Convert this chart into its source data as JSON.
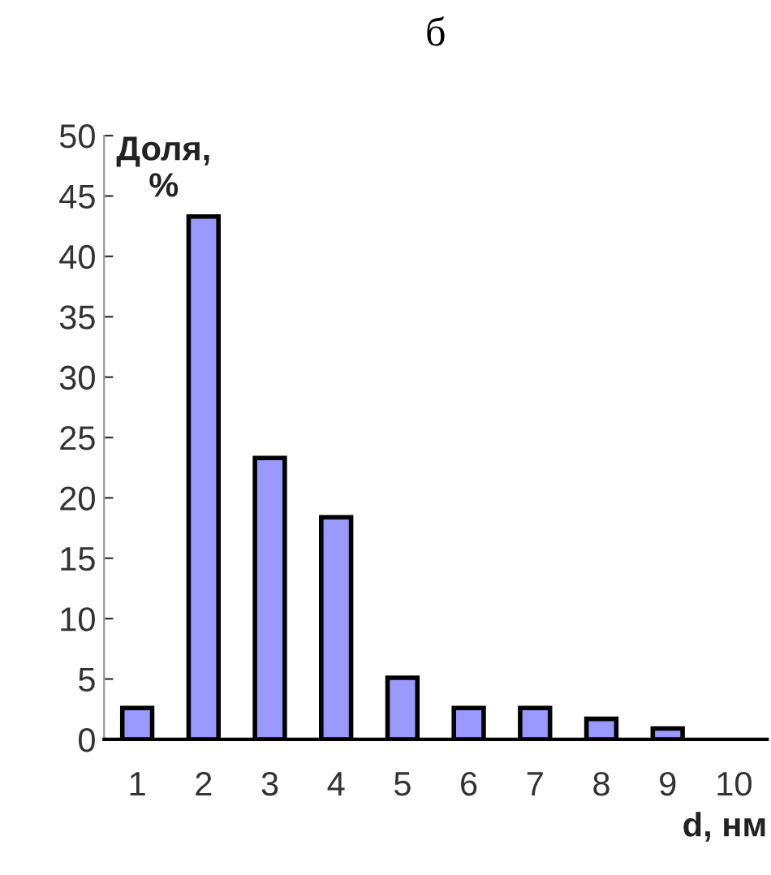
{
  "chart_data": {
    "type": "bar",
    "title": "б",
    "ylabel": "Доля,\n%",
    "xlabel": "d, нм",
    "categories": [
      "1",
      "2",
      "3",
      "4",
      "5",
      "6",
      "7",
      "8",
      "9",
      "10"
    ],
    "values": [
      2.6,
      43.3,
      23.3,
      18.4,
      5.1,
      2.6,
      2.6,
      1.7,
      0.9,
      null
    ],
    "color": "#9999ff",
    "ylim": [
      0,
      50
    ],
    "yticks": [
      0,
      5,
      10,
      15,
      20,
      25,
      30,
      35,
      40,
      45,
      50
    ],
    "grid": false
  }
}
